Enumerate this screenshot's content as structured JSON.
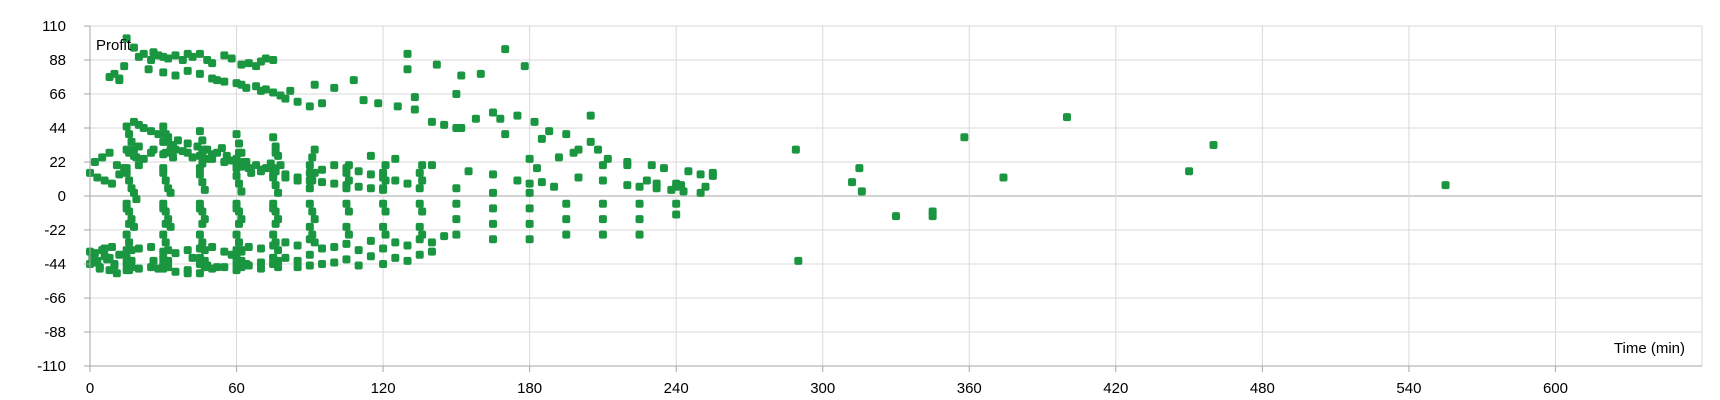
{
  "colors": {
    "series": "#1a9641",
    "grid": "#d9d9d9",
    "zero_line": "#a6a6a6",
    "axis": "#a6a6a6",
    "text": "#000000"
  },
  "chart_data": {
    "type": "scatter",
    "title": "",
    "xlabel": "Time (min)",
    "ylabel": "Profit",
    "xlim": [
      0,
      660
    ],
    "ylim": [
      -110,
      110
    ],
    "x_ticks": [
      0,
      60,
      120,
      180,
      240,
      300,
      360,
      420,
      480,
      540,
      600
    ],
    "y_ticks": [
      110,
      88,
      66,
      44,
      22,
      0,
      -22,
      -44,
      -66,
      -88,
      -110
    ],
    "grid": true,
    "legend": "none",
    "series": [
      {
        "marker": "square",
        "x": [
          0,
          1,
          2,
          3,
          4,
          5,
          6,
          7,
          8,
          9,
          10,
          11,
          12,
          0,
          2,
          4,
          6,
          8,
          10,
          8,
          10,
          12,
          15,
          18,
          22,
          25,
          12,
          14,
          20,
          24,
          26,
          28,
          30,
          32,
          35,
          38,
          40,
          42,
          45,
          48,
          50,
          55,
          58,
          62,
          65,
          68,
          70,
          72,
          75,
          30,
          35,
          40,
          45,
          50,
          52,
          55,
          60,
          62,
          64,
          68,
          70,
          72,
          75,
          78,
          80,
          85,
          90,
          95,
          18,
          20,
          22,
          25,
          28,
          32,
          36,
          40,
          44,
          48,
          52,
          56,
          60,
          64,
          68,
          72,
          76,
          80,
          85,
          90,
          95,
          100,
          105,
          110,
          115,
          120,
          15,
          16,
          17,
          18,
          19,
          20,
          30,
          31,
          32,
          33,
          34,
          45,
          46,
          47,
          48,
          60,
          61,
          62,
          63,
          75,
          76,
          77,
          78,
          15,
          16,
          17,
          18,
          19,
          30,
          31,
          32,
          33,
          45,
          46,
          47,
          60,
          61,
          62,
          75,
          76,
          77,
          15,
          16,
          17,
          18,
          30,
          31,
          32,
          33,
          45,
          46,
          47,
          60,
          61,
          62,
          75,
          76,
          77,
          15,
          16,
          17,
          30,
          31,
          32,
          45,
          46,
          47,
          60,
          61,
          62,
          75,
          76,
          77,
          15,
          17,
          30,
          32,
          45,
          47,
          60,
          62,
          75,
          77,
          15,
          17,
          30,
          32,
          45,
          47,
          60,
          62,
          75,
          77,
          15,
          30,
          45,
          60,
          75,
          15,
          30,
          45,
          60,
          75,
          16,
          31,
          46,
          61,
          76,
          16,
          31,
          46,
          61,
          76,
          90,
          91,
          92,
          90,
          91,
          92,
          90,
          91,
          92,
          90,
          91,
          92,
          105,
          106,
          105,
          106,
          105,
          106,
          105,
          106,
          120,
          121,
          120,
          121,
          120,
          121,
          120,
          121,
          135,
          136,
          135,
          136,
          135,
          136,
          135,
          136,
          150,
          150,
          150,
          150,
          165,
          165,
          165,
          165,
          180,
          180,
          180,
          180,
          195,
          195,
          195,
          210,
          210,
          210,
          225,
          225,
          225,
          240,
          240,
          240,
          15,
          20,
          25,
          30,
          35,
          40,
          45,
          50,
          55,
          60,
          65,
          70,
          75,
          15,
          20,
          25,
          30,
          35,
          40,
          45,
          50,
          55,
          60,
          65,
          70,
          75,
          80,
          85,
          90,
          95,
          100,
          105,
          110,
          115,
          120,
          125,
          130,
          135,
          140,
          80,
          85,
          90,
          95,
          100,
          105,
          110,
          115,
          120,
          125,
          130,
          135,
          140,
          145,
          0,
          3,
          6,
          9,
          12,
          15,
          20,
          25,
          30,
          35,
          40,
          45,
          50,
          55,
          60,
          65,
          70,
          75,
          80,
          85,
          90,
          95,
          100,
          105,
          110,
          115,
          120,
          125,
          130,
          2,
          5,
          8,
          11,
          14,
          18,
          22,
          26,
          30,
          34,
          38,
          42,
          46,
          50,
          54,
          58,
          62,
          66,
          70,
          74,
          16,
          26,
          42,
          48,
          58,
          62,
          70,
          75,
          85,
          90,
          16,
          28,
          40,
          52,
          64,
          82,
          92,
          100,
          108,
          112,
          118,
          126,
          133,
          140,
          145,
          150,
          158,
          165,
          175,
          182,
          188,
          195,
          130,
          142,
          152,
          160,
          170,
          178,
          185,
          192,
          198,
          205,
          212,
          220,
          230,
          235,
          245,
          250,
          255,
          130,
          150,
          168,
          180,
          200,
          205,
          210,
          220,
          228,
          232,
          240,
          133,
          152,
          170,
          183,
          208,
          115,
          125,
          140,
          155,
          165,
          175,
          180,
          185,
          190,
          200,
          210,
          220,
          225,
          232,
          238,
          243,
          250,
          255,
          242,
          252,
          289,
          290,
          312,
          315,
          316,
          330,
          345,
          345,
          358,
          374,
          400,
          450,
          460,
          555
        ],
        "y": [
          -44,
          -40,
          -37,
          -42,
          -46,
          -35,
          -39,
          -41,
          -48,
          -33,
          -45,
          -50,
          -38,
          -36,
          -43,
          -47,
          -34,
          -40,
          -44,
          77,
          79,
          75,
          102,
          96,
          92,
          88,
          76,
          84,
          90,
          82,
          93,
          91,
          90,
          89,
          91,
          88,
          92,
          90,
          92,
          88,
          86,
          91,
          89,
          85,
          86,
          84,
          87,
          89,
          88,
          80,
          78,
          81,
          79,
          76,
          75,
          74,
          73,
          72,
          70,
          71,
          68,
          69,
          67,
          65,
          63,
          61,
          58,
          60,
          48,
          46,
          44,
          42,
          40,
          38,
          36,
          34,
          32,
          30,
          28,
          26,
          24,
          22,
          20,
          18,
          16,
          14,
          12,
          10,
          9,
          8,
          7,
          6,
          5,
          4,
          45,
          40,
          35,
          30,
          25,
          20,
          45,
          40,
          35,
          30,
          25,
          42,
          36,
          30,
          24,
          40,
          34,
          28,
          22,
          38,
          32,
          26,
          20,
          15,
          10,
          5,
          2,
          -2,
          15,
          10,
          5,
          2,
          14,
          9,
          4,
          13,
          8,
          3,
          12,
          7,
          2,
          -5,
          -10,
          -15,
          -20,
          -5,
          -10,
          -15,
          -20,
          -5,
          -10,
          -15,
          -5,
          -10,
          -15,
          -5,
          -10,
          -15,
          -25,
          -30,
          -35,
          -25,
          -30,
          -35,
          -25,
          -30,
          -35,
          -25,
          -30,
          -35,
          -25,
          -30,
          -35,
          -40,
          -42,
          -40,
          -42,
          -40,
          -42,
          -40,
          -42,
          -40,
          -42,
          -44,
          -46,
          -44,
          -46,
          -44,
          -46,
          -44,
          -46,
          -44,
          -46,
          18,
          18,
          18,
          18,
          18,
          -8,
          -8,
          -8,
          -8,
          -8,
          28,
          28,
          28,
          28,
          28,
          -18,
          -18,
          -18,
          -18,
          -18,
          5,
          10,
          15,
          -5,
          -10,
          -15,
          -20,
          -25,
          -30,
          20,
          25,
          30,
          5,
          10,
          -5,
          -10,
          -20,
          -25,
          15,
          20,
          5,
          10,
          -5,
          -10,
          -20,
          -25,
          15,
          20,
          5,
          10,
          -5,
          -10,
          -20,
          -25,
          15,
          20,
          5,
          -5,
          -15,
          -25,
          2,
          -8,
          -18,
          -28,
          2,
          -8,
          -18,
          -28,
          -5,
          -15,
          -25,
          -5,
          -15,
          -25,
          -5,
          -15,
          -25,
          -5,
          -12,
          8,
          -48,
          -47,
          -46,
          -47,
          -49,
          -48,
          -50,
          -47,
          -46,
          -48,
          -45,
          -47,
          -44,
          -35,
          -34,
          -33,
          -36,
          -37,
          -35,
          -34,
          -33,
          -36,
          -35,
          -33,
          -34,
          -32,
          -40,
          -42,
          -38,
          -44,
          -43,
          -41,
          -45,
          -39,
          -44,
          -40,
          -42,
          -38,
          -36,
          -30,
          -32,
          -28,
          -34,
          -33,
          -31,
          -35,
          -29,
          -34,
          -30,
          -32,
          -28,
          -30,
          -26,
          15,
          12,
          10,
          8,
          14,
          30,
          32,
          28,
          35,
          30,
          28,
          26,
          24,
          22,
          20,
          18,
          16,
          14,
          12,
          10,
          15,
          17,
          20,
          18,
          16,
          14,
          12,
          10,
          8,
          22,
          25,
          28,
          20,
          18,
          26,
          24,
          30,
          27,
          33,
          29,
          25,
          21,
          27,
          31,
          23,
          19,
          15,
          17,
          21,
          -44,
          -42,
          -40,
          -45,
          -38,
          -36,
          -43,
          -40,
          -46,
          -45,
          -48,
          -47,
          -50,
          -46,
          -44,
          68,
          72,
          70,
          75,
          62,
          60,
          58,
          56,
          48,
          46,
          44,
          50,
          54,
          52,
          48,
          42,
          40,
          92,
          85,
          78,
          79,
          95,
          84,
          37,
          25,
          28,
          52,
          24,
          22,
          20,
          18,
          16,
          14,
          15,
          82,
          66,
          50,
          24,
          30,
          35,
          20,
          20,
          10,
          8,
          6,
          64,
          44,
          40,
          18,
          30,
          26,
          24,
          20,
          16,
          14,
          10,
          8,
          9,
          6,
          12,
          10,
          7,
          6,
          5,
          4,
          3,
          2,
          13,
          7,
          6,
          30,
          -42,
          9,
          18,
          3,
          -13,
          -10,
          -13,
          38,
          12,
          51,
          16,
          33,
          7
        ]
      }
    ]
  }
}
